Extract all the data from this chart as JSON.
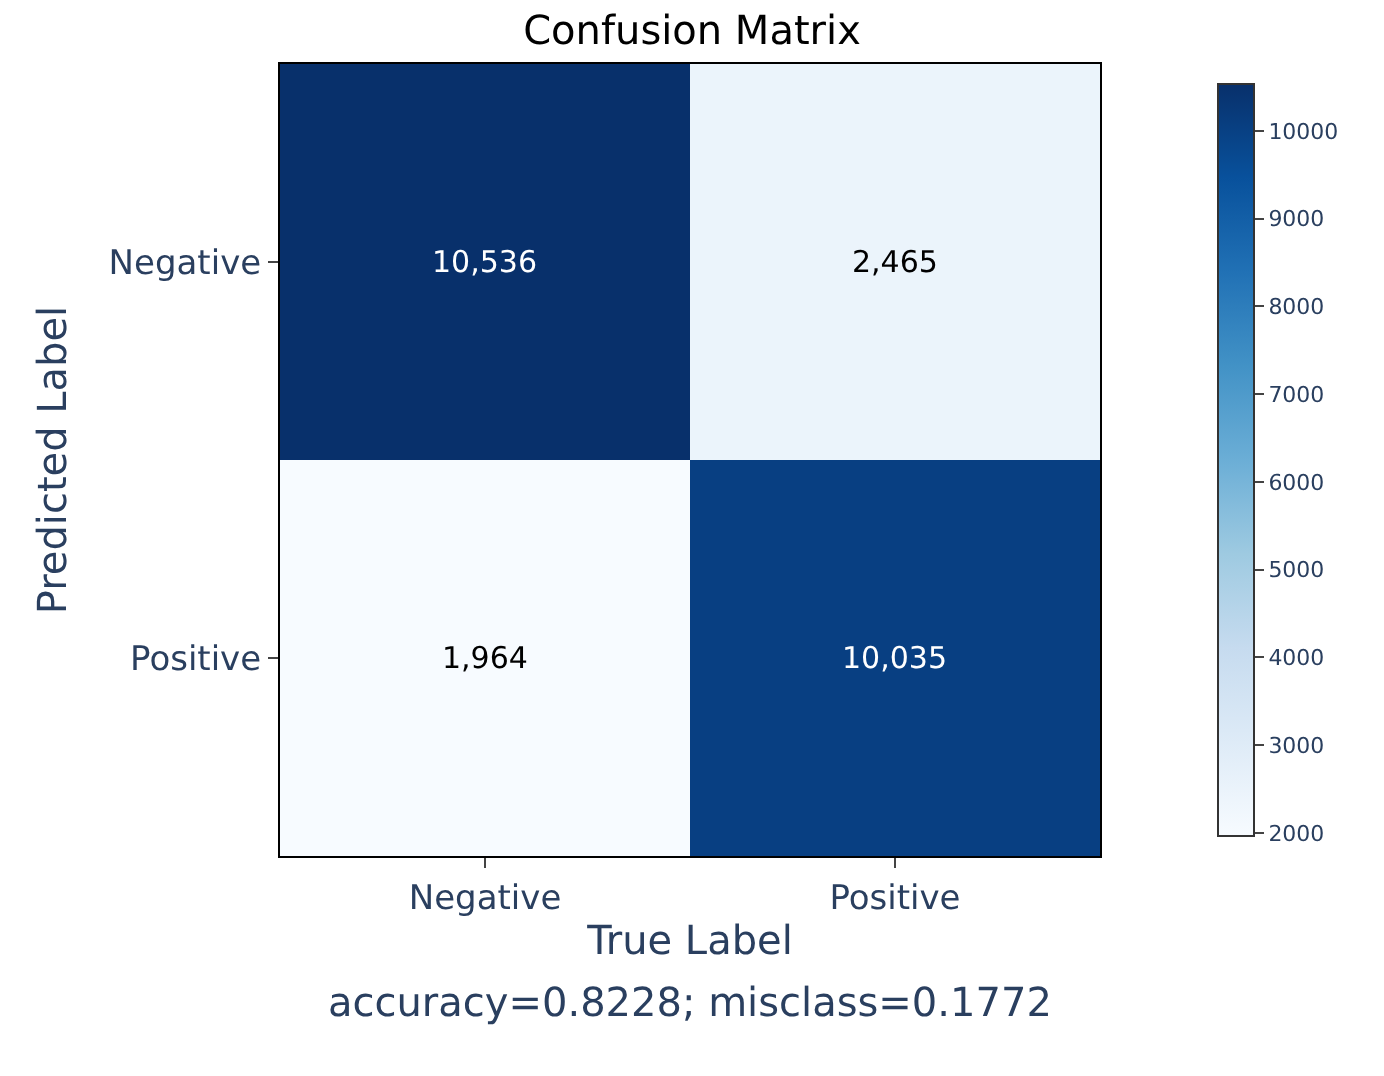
{
  "chart_data": {
    "type": "heatmap",
    "title": "Confusion Matrix",
    "xlabel": "True Label",
    "ylabel": "Predicted Label",
    "categories": [
      "Negative",
      "Positive"
    ],
    "y_categories": [
      "Negative",
      "Positive"
    ],
    "cells": [
      [
        10536,
        2465
      ],
      [
        1964,
        10035
      ]
    ],
    "cell_labels": [
      [
        "10,536",
        "2,465"
      ],
      [
        "1,964",
        "10,035"
      ]
    ],
    "clim": [
      1964,
      10536
    ],
    "cticks": [
      2000,
      3000,
      4000,
      5000,
      6000,
      7000,
      8000,
      9000,
      10000
    ],
    "annotations": [
      "accuracy=0.8228; misclass=0.1772"
    ]
  }
}
